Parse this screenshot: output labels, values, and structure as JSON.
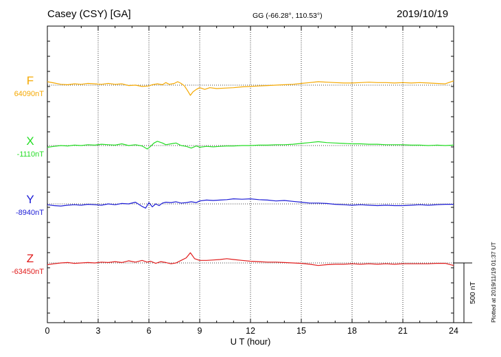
{
  "header": {
    "station": "Casey (CSY)  [GA]",
    "coords": "GG (-66.28°, 110.53°)",
    "date": "2019/10/19"
  },
  "footer": {
    "plotted": "Plotted at 2019/11/19 01:37  UT"
  },
  "chart_data": {
    "type": "line",
    "title": "",
    "xlabel": "U T (hour)",
    "ylabel": "",
    "xlim": [
      0,
      24
    ],
    "xticks": [
      0,
      3,
      6,
      9,
      12,
      15,
      18,
      21,
      24
    ],
    "grid": true,
    "grid_style": "dotted",
    "scale_bar": {
      "label": "500 nT",
      "value": 500
    },
    "series": [
      {
        "name": "F",
        "baseline_label": "64090nT",
        "baseline": 64090,
        "color": "#f5a800",
        "points": [
          [
            0,
            64130
          ],
          [
            0.4,
            64115
          ],
          [
            0.8,
            64100
          ],
          [
            1.2,
            64095
          ],
          [
            1.6,
            64105
          ],
          [
            2.0,
            64100
          ],
          [
            2.4,
            64110
          ],
          [
            2.8,
            64105
          ],
          [
            3.2,
            64100
          ],
          [
            3.6,
            64110
          ],
          [
            4.0,
            64100
          ],
          [
            4.4,
            64105
          ],
          [
            4.8,
            64085
          ],
          [
            5.2,
            64090
          ],
          [
            5.6,
            64075
          ],
          [
            6.0,
            64080
          ],
          [
            6.2,
            64095
          ],
          [
            6.5,
            64105
          ],
          [
            6.8,
            64095
          ],
          [
            7.0,
            64120
          ],
          [
            7.2,
            64100
          ],
          [
            7.5,
            64110
          ],
          [
            7.7,
            64130
          ],
          [
            7.9,
            64110
          ],
          [
            8.1,
            64080
          ],
          [
            8.3,
            64020
          ],
          [
            8.45,
            63970
          ],
          [
            8.6,
            64010
          ],
          [
            8.8,
            64040
          ],
          [
            9.0,
            64060
          ],
          [
            9.3,
            64040
          ],
          [
            9.6,
            64060
          ],
          [
            10.0,
            64050
          ],
          [
            10.5,
            64055
          ],
          [
            11,
            64060
          ],
          [
            11.5,
            64070
          ],
          [
            12,
            64075
          ],
          [
            12.5,
            64080
          ],
          [
            13,
            64085
          ],
          [
            13.5,
            64090
          ],
          [
            14,
            64095
          ],
          [
            14.5,
            64100
          ],
          [
            15,
            64110
          ],
          [
            15.5,
            64120
          ],
          [
            16,
            64130
          ],
          [
            16.5,
            64125
          ],
          [
            17,
            64120
          ],
          [
            17.5,
            64115
          ],
          [
            18,
            64115
          ],
          [
            18.5,
            64120
          ],
          [
            19,
            64125
          ],
          [
            19.5,
            64120
          ],
          [
            20,
            64120
          ],
          [
            20.5,
            64115
          ],
          [
            21,
            64120
          ],
          [
            21.5,
            64115
          ],
          [
            22,
            64120
          ],
          [
            22.5,
            64115
          ],
          [
            23,
            64110
          ],
          [
            23.5,
            64105
          ],
          [
            24,
            64140
          ]
        ]
      },
      {
        "name": "X",
        "baseline_label": "-1110nT",
        "baseline": -1110,
        "color": "#22dd22",
        "points": [
          [
            0,
            -1130
          ],
          [
            0.4,
            -1120
          ],
          [
            0.8,
            -1110
          ],
          [
            1.2,
            -1115
          ],
          [
            1.6,
            -1105
          ],
          [
            2.0,
            -1110
          ],
          [
            2.4,
            -1100
          ],
          [
            2.8,
            -1105
          ],
          [
            3.2,
            -1095
          ],
          [
            3.6,
            -1100
          ],
          [
            4.0,
            -1105
          ],
          [
            4.4,
            -1090
          ],
          [
            4.8,
            -1110
          ],
          [
            5.2,
            -1100
          ],
          [
            5.6,
            -1115
          ],
          [
            5.9,
            -1150
          ],
          [
            6.1,
            -1120
          ],
          [
            6.3,
            -1080
          ],
          [
            6.5,
            -1060
          ],
          [
            6.8,
            -1080
          ],
          [
            7.0,
            -1100
          ],
          [
            7.3,
            -1090
          ],
          [
            7.6,
            -1080
          ],
          [
            7.9,
            -1110
          ],
          [
            8.2,
            -1120
          ],
          [
            8.5,
            -1140
          ],
          [
            8.8,
            -1115
          ],
          [
            9.0,
            -1130
          ],
          [
            9.4,
            -1120
          ],
          [
            9.8,
            -1125
          ],
          [
            10.2,
            -1120
          ],
          [
            10.6,
            -1115
          ],
          [
            11,
            -1115
          ],
          [
            11.5,
            -1110
          ],
          [
            12,
            -1110
          ],
          [
            12.5,
            -1105
          ],
          [
            13,
            -1105
          ],
          [
            13.5,
            -1100
          ],
          [
            14,
            -1100
          ],
          [
            14.5,
            -1095
          ],
          [
            15,
            -1085
          ],
          [
            15.5,
            -1075
          ],
          [
            16,
            -1065
          ],
          [
            16.5,
            -1075
          ],
          [
            17,
            -1080
          ],
          [
            17.5,
            -1085
          ],
          [
            18,
            -1090
          ],
          [
            18.5,
            -1090
          ],
          [
            19,
            -1095
          ],
          [
            19.5,
            -1095
          ],
          [
            20,
            -1100
          ],
          [
            20.5,
            -1100
          ],
          [
            21,
            -1100
          ],
          [
            21.5,
            -1105
          ],
          [
            22,
            -1105
          ],
          [
            22.5,
            -1110
          ],
          [
            23,
            -1105
          ],
          [
            23.5,
            -1110
          ],
          [
            24,
            -1105
          ]
        ]
      },
      {
        "name": "Y",
        "baseline_label": "-8940nT",
        "baseline": -8940,
        "color": "#1a1ad6",
        "points": [
          [
            0,
            -8950
          ],
          [
            0.4,
            -8960
          ],
          [
            0.8,
            -8965
          ],
          [
            1.2,
            -8955
          ],
          [
            1.6,
            -8950
          ],
          [
            2.0,
            -8955
          ],
          [
            2.4,
            -8945
          ],
          [
            2.8,
            -8950
          ],
          [
            3.2,
            -8955
          ],
          [
            3.6,
            -8940
          ],
          [
            4.0,
            -8950
          ],
          [
            4.4,
            -8935
          ],
          [
            4.8,
            -8940
          ],
          [
            5.2,
            -8920
          ],
          [
            5.4,
            -8945
          ],
          [
            5.6,
            -8970
          ],
          [
            5.8,
            -8990
          ],
          [
            6.0,
            -8925
          ],
          [
            6.2,
            -8975
          ],
          [
            6.4,
            -8940
          ],
          [
            6.6,
            -8960
          ],
          [
            6.8,
            -8930
          ],
          [
            7.0,
            -8920
          ],
          [
            7.3,
            -8925
          ],
          [
            7.6,
            -8915
          ],
          [
            7.9,
            -8930
          ],
          [
            8.2,
            -8925
          ],
          [
            8.5,
            -8915
          ],
          [
            8.8,
            -8925
          ],
          [
            9.0,
            -8905
          ],
          [
            9.4,
            -8895
          ],
          [
            9.8,
            -8900
          ],
          [
            10.2,
            -8895
          ],
          [
            10.6,
            -8890
          ],
          [
            11,
            -8880
          ],
          [
            11.5,
            -8885
          ],
          [
            12,
            -8880
          ],
          [
            12.5,
            -8890
          ],
          [
            13,
            -8895
          ],
          [
            13.5,
            -8905
          ],
          [
            14,
            -8900
          ],
          [
            14.5,
            -8910
          ],
          [
            15,
            -8920
          ],
          [
            15.5,
            -8930
          ],
          [
            16,
            -8930
          ],
          [
            16.5,
            -8935
          ],
          [
            17,
            -8945
          ],
          [
            17.5,
            -8950
          ],
          [
            18,
            -8955
          ],
          [
            18.5,
            -8950
          ],
          [
            19,
            -8955
          ],
          [
            19.5,
            -8960
          ],
          [
            20,
            -8955
          ],
          [
            20.5,
            -8960
          ],
          [
            21,
            -8960
          ],
          [
            21.5,
            -8955
          ],
          [
            22,
            -8950
          ],
          [
            22.5,
            -8955
          ],
          [
            23,
            -8950
          ],
          [
            23.5,
            -8945
          ],
          [
            24,
            -8945
          ]
        ]
      },
      {
        "name": "Z",
        "baseline_label": "-63450nT",
        "baseline": -63450,
        "color": "#e01a1a",
        "points": [
          [
            0,
            -63470
          ],
          [
            0.4,
            -63460
          ],
          [
            0.8,
            -63450
          ],
          [
            1.2,
            -63445
          ],
          [
            1.6,
            -63455
          ],
          [
            2.0,
            -63450
          ],
          [
            2.4,
            -63445
          ],
          [
            2.8,
            -63450
          ],
          [
            3.2,
            -63440
          ],
          [
            3.6,
            -63445
          ],
          [
            4.0,
            -63435
          ],
          [
            4.4,
            -63445
          ],
          [
            4.8,
            -63425
          ],
          [
            5.2,
            -63440
          ],
          [
            5.6,
            -63420
          ],
          [
            5.9,
            -63440
          ],
          [
            6.1,
            -63430
          ],
          [
            6.4,
            -63455
          ],
          [
            6.7,
            -63435
          ],
          [
            7.0,
            -63445
          ],
          [
            7.3,
            -63460
          ],
          [
            7.6,
            -63450
          ],
          [
            7.9,
            -63420
          ],
          [
            8.2,
            -63390
          ],
          [
            8.45,
            -63330
          ],
          [
            8.7,
            -63400
          ],
          [
            9.0,
            -63420
          ],
          [
            9.4,
            -63420
          ],
          [
            9.8,
            -63415
          ],
          [
            10.2,
            -63410
          ],
          [
            10.6,
            -63400
          ],
          [
            11,
            -63410
          ],
          [
            11.5,
            -63420
          ],
          [
            12,
            -63430
          ],
          [
            12.5,
            -63435
          ],
          [
            13,
            -63440
          ],
          [
            13.5,
            -63440
          ],
          [
            14,
            -63445
          ],
          [
            14.5,
            -63450
          ],
          [
            15,
            -63455
          ],
          [
            15.5,
            -63465
          ],
          [
            16,
            -63480
          ],
          [
            16.5,
            -63470
          ],
          [
            17,
            -63465
          ],
          [
            17.5,
            -63465
          ],
          [
            18,
            -63460
          ],
          [
            18.5,
            -63465
          ],
          [
            19,
            -63460
          ],
          [
            19.5,
            -63465
          ],
          [
            20,
            -63460
          ],
          [
            20.5,
            -63465
          ],
          [
            21,
            -63460
          ],
          [
            21.5,
            -63460
          ],
          [
            22,
            -63460
          ],
          [
            22.5,
            -63460
          ],
          [
            23,
            -63455
          ],
          [
            23.5,
            -63455
          ],
          [
            24,
            -63480
          ]
        ]
      }
    ]
  }
}
